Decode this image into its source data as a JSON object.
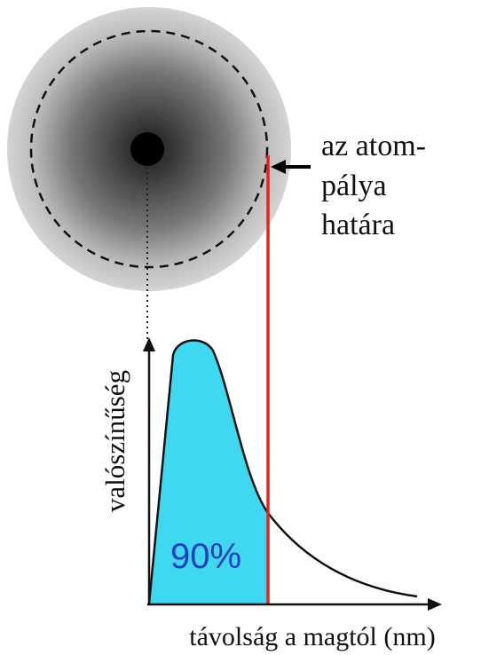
{
  "orbital_label": {
    "lines": [
      "az atom-",
      "pálya",
      "határa"
    ]
  },
  "graph": {
    "y_axis_label": "valószínűség",
    "x_axis_label": "távolság a magtól (nm)",
    "area_label": "90%"
  }
}
